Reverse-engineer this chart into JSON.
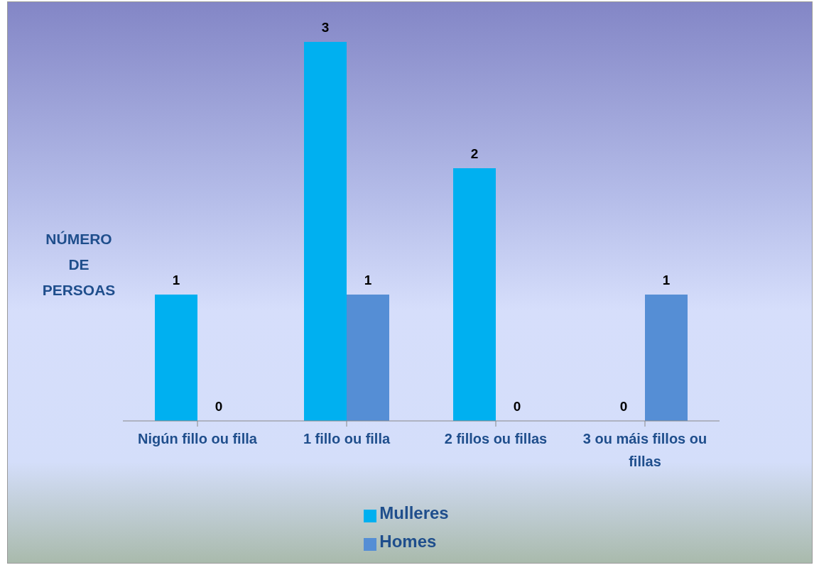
{
  "chart_data": {
    "type": "bar",
    "ylabel": "NÚMERO DE PERSOAS",
    "categories": [
      "Nigún fillo ou filla",
      "1 fillo ou filla",
      "2 fillos ou fillas",
      "3 ou máis fillos ou fillas"
    ],
    "series": [
      {
        "name": "Mulleres",
        "color": "#00b0f0",
        "values": [
          1,
          3,
          2,
          0
        ]
      },
      {
        "name": "Homes",
        "color": "#558ed5",
        "values": [
          0,
          1,
          0,
          1
        ]
      }
    ],
    "data_labels": true,
    "grid": false,
    "legend": "bottom"
  }
}
